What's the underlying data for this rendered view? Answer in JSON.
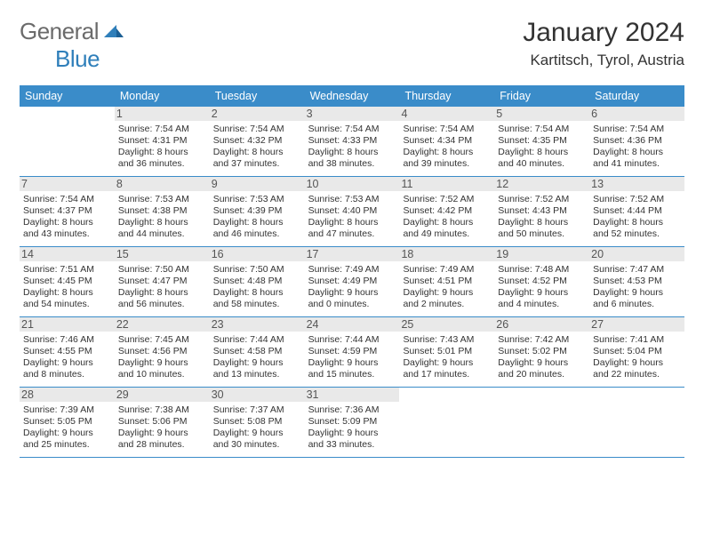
{
  "logo": {
    "word1": "General",
    "word2": "Blue"
  },
  "title": "January 2024",
  "location": "Kartitsch, Tyrol, Austria",
  "colors": {
    "header_bg": "#3a8cc9",
    "header_text": "#ffffff",
    "daynum_bg": "#e9e9e9",
    "text": "#333333",
    "rule": "#3a8cc9",
    "logo_gray": "#6b6b6b",
    "logo_blue": "#2f7fba",
    "page_bg": "#ffffff"
  },
  "days_of_week": [
    "Sunday",
    "Monday",
    "Tuesday",
    "Wednesday",
    "Thursday",
    "Friday",
    "Saturday"
  ],
  "weeks": [
    [
      {
        "n": "",
        "sunrise": "",
        "sunset": "",
        "daylight": ""
      },
      {
        "n": "1",
        "sunrise": "Sunrise: 7:54 AM",
        "sunset": "Sunset: 4:31 PM",
        "daylight": "Daylight: 8 hours and 36 minutes."
      },
      {
        "n": "2",
        "sunrise": "Sunrise: 7:54 AM",
        "sunset": "Sunset: 4:32 PM",
        "daylight": "Daylight: 8 hours and 37 minutes."
      },
      {
        "n": "3",
        "sunrise": "Sunrise: 7:54 AM",
        "sunset": "Sunset: 4:33 PM",
        "daylight": "Daylight: 8 hours and 38 minutes."
      },
      {
        "n": "4",
        "sunrise": "Sunrise: 7:54 AM",
        "sunset": "Sunset: 4:34 PM",
        "daylight": "Daylight: 8 hours and 39 minutes."
      },
      {
        "n": "5",
        "sunrise": "Sunrise: 7:54 AM",
        "sunset": "Sunset: 4:35 PM",
        "daylight": "Daylight: 8 hours and 40 minutes."
      },
      {
        "n": "6",
        "sunrise": "Sunrise: 7:54 AM",
        "sunset": "Sunset: 4:36 PM",
        "daylight": "Daylight: 8 hours and 41 minutes."
      }
    ],
    [
      {
        "n": "7",
        "sunrise": "Sunrise: 7:54 AM",
        "sunset": "Sunset: 4:37 PM",
        "daylight": "Daylight: 8 hours and 43 minutes."
      },
      {
        "n": "8",
        "sunrise": "Sunrise: 7:53 AM",
        "sunset": "Sunset: 4:38 PM",
        "daylight": "Daylight: 8 hours and 44 minutes."
      },
      {
        "n": "9",
        "sunrise": "Sunrise: 7:53 AM",
        "sunset": "Sunset: 4:39 PM",
        "daylight": "Daylight: 8 hours and 46 minutes."
      },
      {
        "n": "10",
        "sunrise": "Sunrise: 7:53 AM",
        "sunset": "Sunset: 4:40 PM",
        "daylight": "Daylight: 8 hours and 47 minutes."
      },
      {
        "n": "11",
        "sunrise": "Sunrise: 7:52 AM",
        "sunset": "Sunset: 4:42 PM",
        "daylight": "Daylight: 8 hours and 49 minutes."
      },
      {
        "n": "12",
        "sunrise": "Sunrise: 7:52 AM",
        "sunset": "Sunset: 4:43 PM",
        "daylight": "Daylight: 8 hours and 50 minutes."
      },
      {
        "n": "13",
        "sunrise": "Sunrise: 7:52 AM",
        "sunset": "Sunset: 4:44 PM",
        "daylight": "Daylight: 8 hours and 52 minutes."
      }
    ],
    [
      {
        "n": "14",
        "sunrise": "Sunrise: 7:51 AM",
        "sunset": "Sunset: 4:45 PM",
        "daylight": "Daylight: 8 hours and 54 minutes."
      },
      {
        "n": "15",
        "sunrise": "Sunrise: 7:50 AM",
        "sunset": "Sunset: 4:47 PM",
        "daylight": "Daylight: 8 hours and 56 minutes."
      },
      {
        "n": "16",
        "sunrise": "Sunrise: 7:50 AM",
        "sunset": "Sunset: 4:48 PM",
        "daylight": "Daylight: 8 hours and 58 minutes."
      },
      {
        "n": "17",
        "sunrise": "Sunrise: 7:49 AM",
        "sunset": "Sunset: 4:49 PM",
        "daylight": "Daylight: 9 hours and 0 minutes."
      },
      {
        "n": "18",
        "sunrise": "Sunrise: 7:49 AM",
        "sunset": "Sunset: 4:51 PM",
        "daylight": "Daylight: 9 hours and 2 minutes."
      },
      {
        "n": "19",
        "sunrise": "Sunrise: 7:48 AM",
        "sunset": "Sunset: 4:52 PM",
        "daylight": "Daylight: 9 hours and 4 minutes."
      },
      {
        "n": "20",
        "sunrise": "Sunrise: 7:47 AM",
        "sunset": "Sunset: 4:53 PM",
        "daylight": "Daylight: 9 hours and 6 minutes."
      }
    ],
    [
      {
        "n": "21",
        "sunrise": "Sunrise: 7:46 AM",
        "sunset": "Sunset: 4:55 PM",
        "daylight": "Daylight: 9 hours and 8 minutes."
      },
      {
        "n": "22",
        "sunrise": "Sunrise: 7:45 AM",
        "sunset": "Sunset: 4:56 PM",
        "daylight": "Daylight: 9 hours and 10 minutes."
      },
      {
        "n": "23",
        "sunrise": "Sunrise: 7:44 AM",
        "sunset": "Sunset: 4:58 PM",
        "daylight": "Daylight: 9 hours and 13 minutes."
      },
      {
        "n": "24",
        "sunrise": "Sunrise: 7:44 AM",
        "sunset": "Sunset: 4:59 PM",
        "daylight": "Daylight: 9 hours and 15 minutes."
      },
      {
        "n": "25",
        "sunrise": "Sunrise: 7:43 AM",
        "sunset": "Sunset: 5:01 PM",
        "daylight": "Daylight: 9 hours and 17 minutes."
      },
      {
        "n": "26",
        "sunrise": "Sunrise: 7:42 AM",
        "sunset": "Sunset: 5:02 PM",
        "daylight": "Daylight: 9 hours and 20 minutes."
      },
      {
        "n": "27",
        "sunrise": "Sunrise: 7:41 AM",
        "sunset": "Sunset: 5:04 PM",
        "daylight": "Daylight: 9 hours and 22 minutes."
      }
    ],
    [
      {
        "n": "28",
        "sunrise": "Sunrise: 7:39 AM",
        "sunset": "Sunset: 5:05 PM",
        "daylight": "Daylight: 9 hours and 25 minutes."
      },
      {
        "n": "29",
        "sunrise": "Sunrise: 7:38 AM",
        "sunset": "Sunset: 5:06 PM",
        "daylight": "Daylight: 9 hours and 28 minutes."
      },
      {
        "n": "30",
        "sunrise": "Sunrise: 7:37 AM",
        "sunset": "Sunset: 5:08 PM",
        "daylight": "Daylight: 9 hours and 30 minutes."
      },
      {
        "n": "31",
        "sunrise": "Sunrise: 7:36 AM",
        "sunset": "Sunset: 5:09 PM",
        "daylight": "Daylight: 9 hours and 33 minutes."
      },
      {
        "n": "",
        "sunrise": "",
        "sunset": "",
        "daylight": ""
      },
      {
        "n": "",
        "sunrise": "",
        "sunset": "",
        "daylight": ""
      },
      {
        "n": "",
        "sunrise": "",
        "sunset": "",
        "daylight": ""
      }
    ]
  ]
}
